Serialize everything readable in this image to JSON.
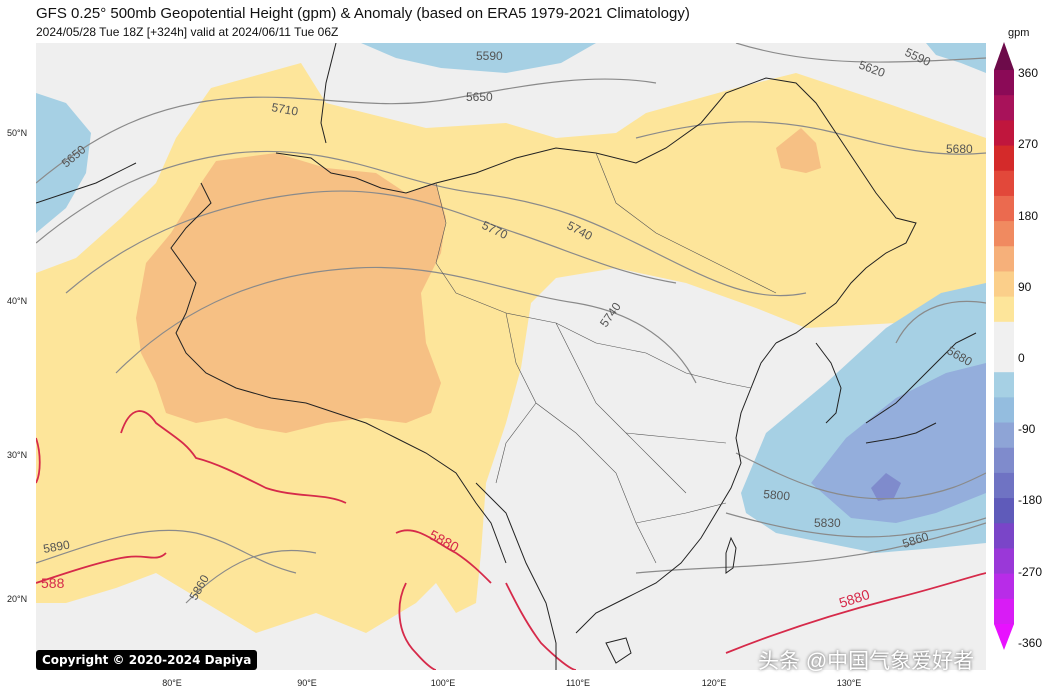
{
  "header": {
    "title": "GFS 0.25° 500mb Geopotential Height (gpm) & Anomaly (based on ERA5 1979-2021 Climatology)",
    "subtitle": "2024/05/28 Tue 18Z [+324h] valid at 2024/06/11 Tue 06Z"
  },
  "axes": {
    "lat_labels": [
      "50°N",
      "40°N",
      "30°N",
      "20°N"
    ],
    "lon_labels": [
      "80°E",
      "90°E",
      "100°E",
      "110°E",
      "120°E",
      "130°E"
    ]
  },
  "contour_labels": {
    "c5590a": "5590",
    "c5650a": "5650",
    "c5650b": "5650",
    "c5620": "5620",
    "c5590b": "5590",
    "c5710": "5710",
    "c5680a": "5680",
    "c5770": "5770",
    "c5740a": "5740",
    "c5740b": "5740",
    "c5680b": "5680",
    "c5800": "5800",
    "c5830": "5830",
    "c5860a": "5860",
    "c5890": "5890",
    "c5860b": "5860",
    "c5880a": "5880",
    "c5880b": "5880",
    "c588x": "588"
  },
  "colorbar": {
    "unit": "gpm",
    "ticks": [
      "360",
      "270",
      "180",
      "90",
      "0",
      "-90",
      "-180",
      "-270",
      "-360"
    ],
    "colors": [
      "#8b0a57",
      "#a8125a",
      "#c0163d",
      "#d42a2a",
      "#e2483a",
      "#eb6a4f",
      "#f08a60",
      "#f6b07a",
      "#fbcf8a",
      "#fde59a",
      "#f0f0f0",
      "#f0f0f0",
      "#a6d0e4",
      "#94bddf",
      "#8ea4d6",
      "#7f8bcc",
      "#6f73c3",
      "#5f5bba",
      "#7a45c8",
      "#9a38d8",
      "#b82ce8",
      "#d81cf5"
    ]
  },
  "map_colors": {
    "background": "#efefef",
    "anomaly_light_orange": "#fde59a",
    "anomaly_orange": "#f6c084",
    "anomaly_light_blue": "#a6d0e4",
    "anomaly_blue": "#94aedc",
    "anomaly_dark_blue": "#7f8bcc",
    "contour_gray": "#8a8a8a",
    "contour_red": "#d62a4a",
    "border": "#222222"
  },
  "footer": {
    "copyright": "Copyright © 2020-2024 Dapiya",
    "watermark": "头条 @中国气象爱好者"
  }
}
